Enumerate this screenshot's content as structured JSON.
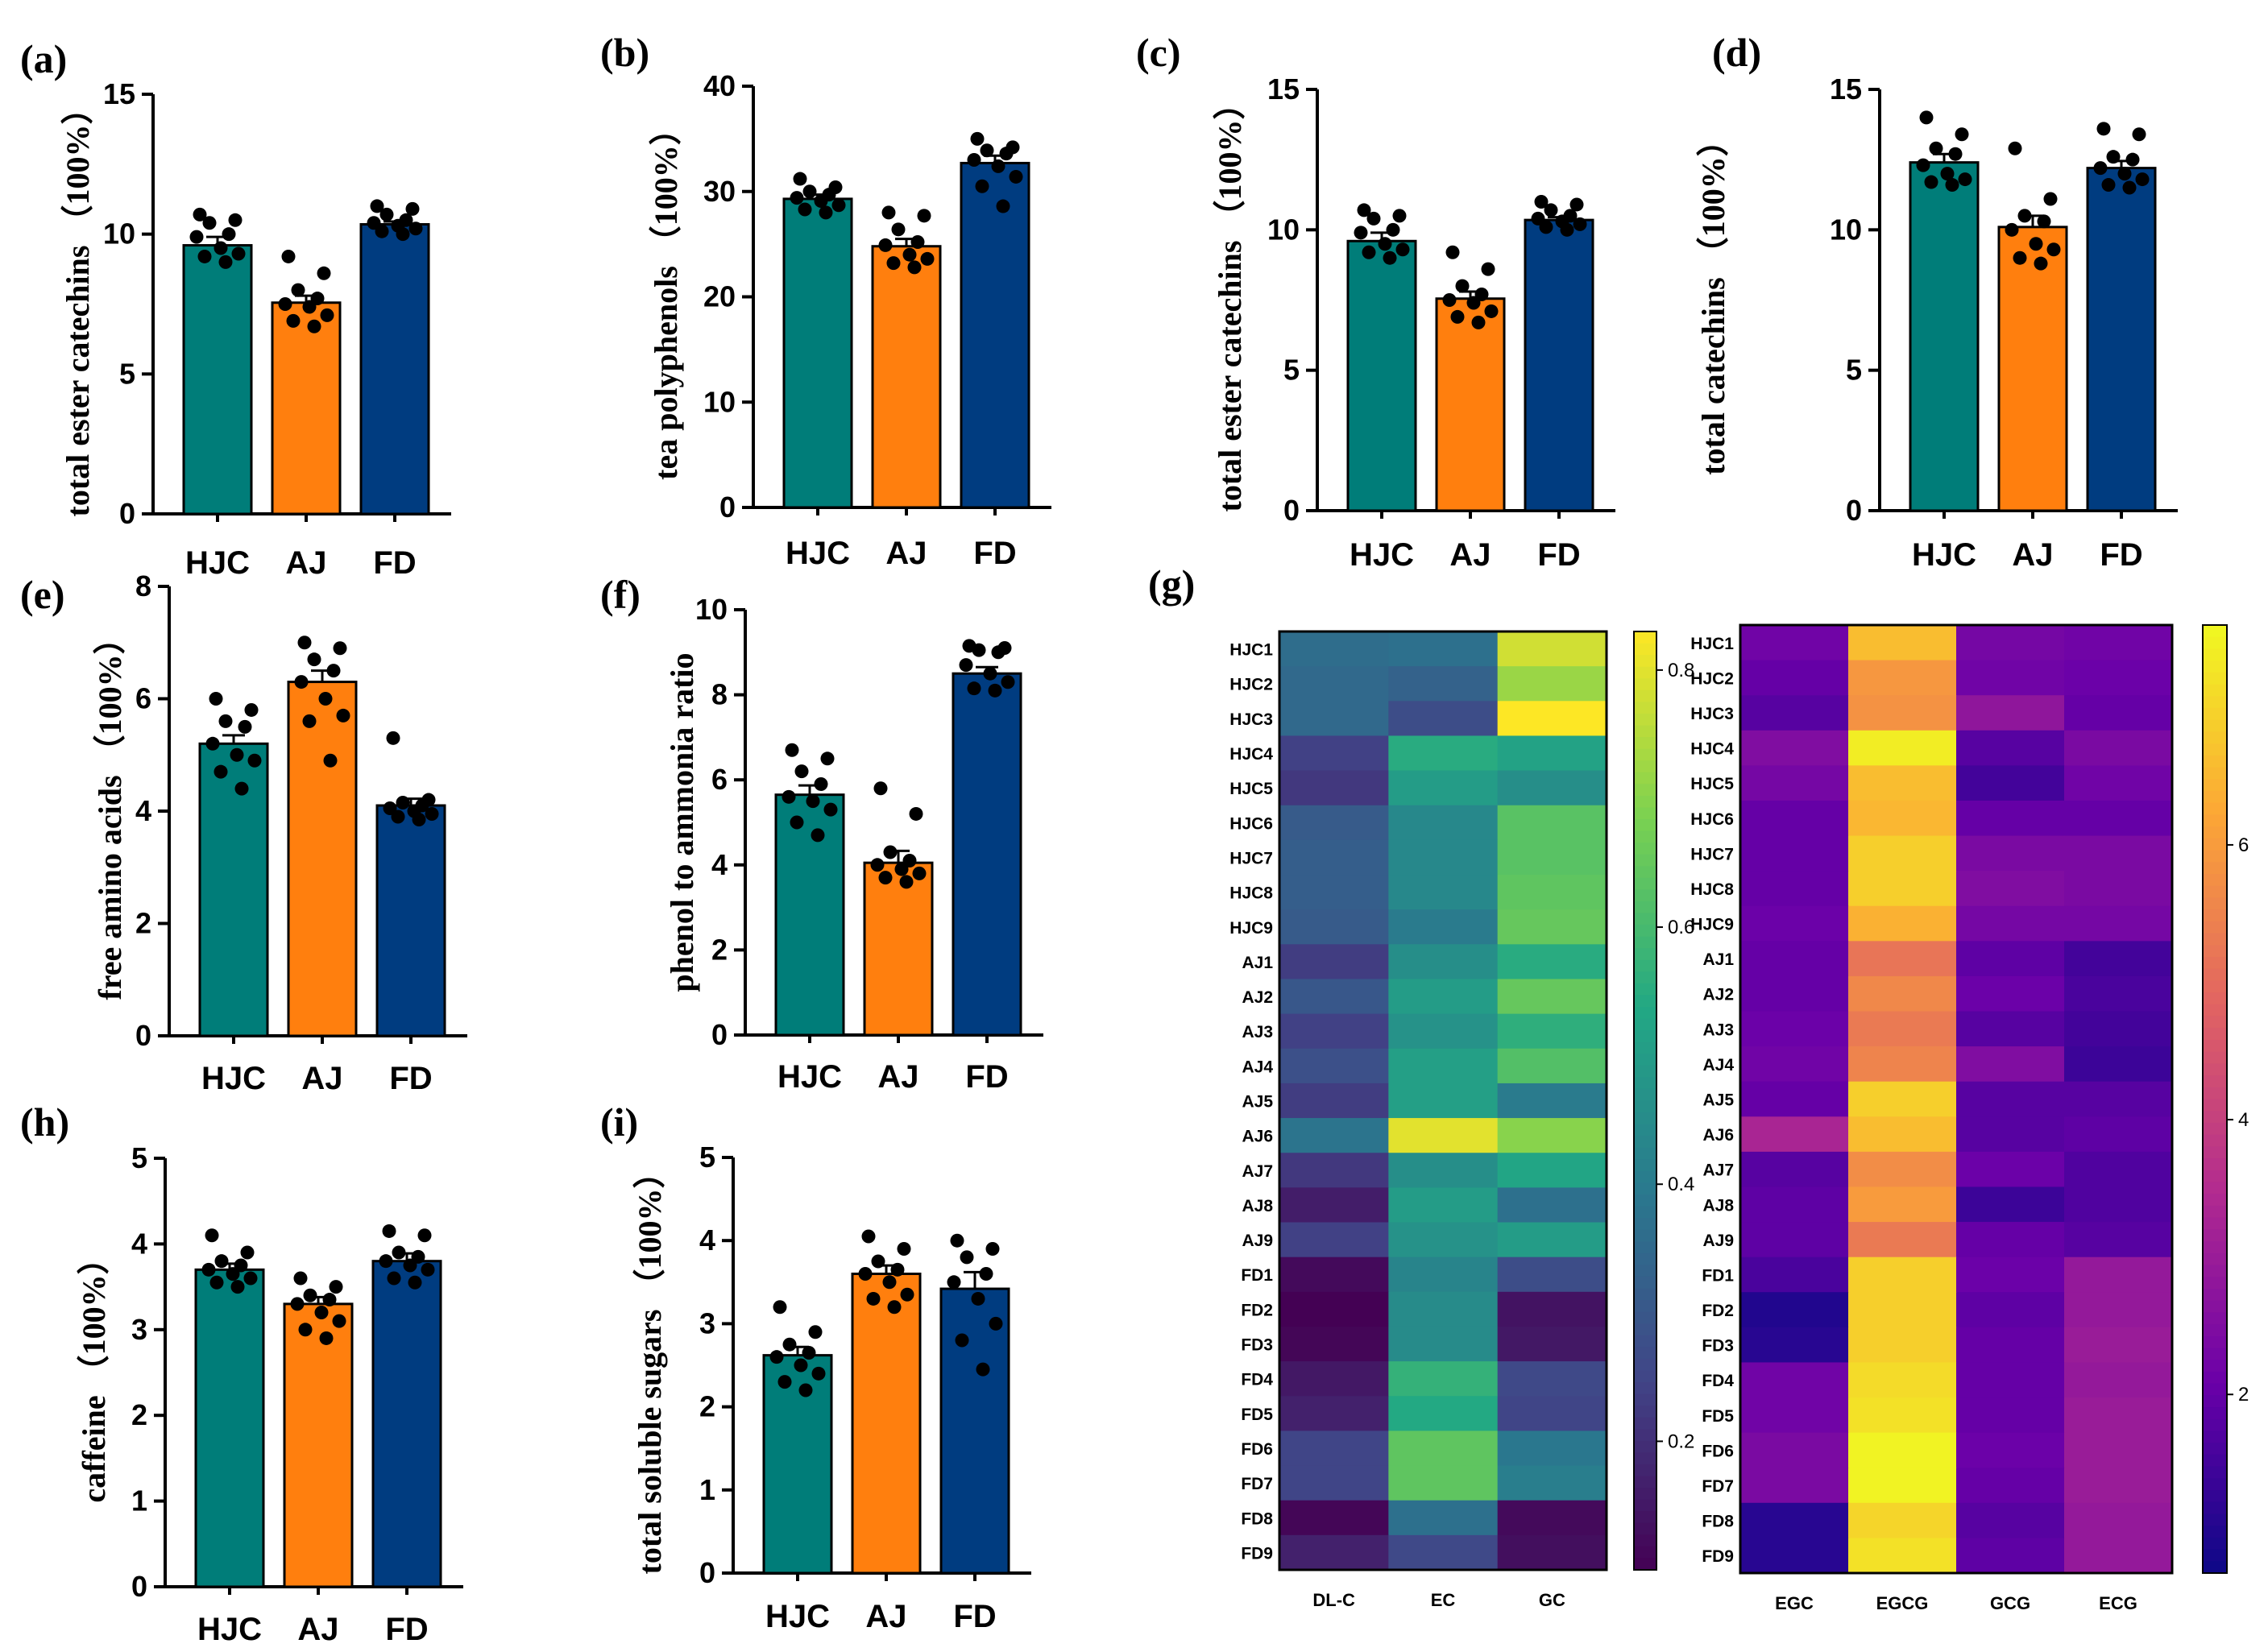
{
  "colors": {
    "HJC": "#007d79",
    "AJ": "#ff7f0e",
    "FD": "#003c80"
  },
  "chart_data": [
    {
      "id": "a",
      "type": "bar",
      "panel_label": "(a)",
      "ylabel": "total ester catechins （100%）",
      "categories": [
        "HJC",
        "AJ",
        "FD"
      ],
      "values": [
        9.6,
        7.55,
        10.35
      ],
      "sem": [
        0.3,
        0.25,
        0.1
      ],
      "points": [
        [
          10.7,
          10.5,
          10.4,
          10.0,
          9.9,
          9.5,
          9.3,
          9.2,
          9.0
        ],
        [
          9.2,
          8.6,
          8.0,
          7.7,
          7.5,
          7.4,
          7.1,
          6.9,
          6.7
        ],
        [
          11.0,
          10.9,
          10.7,
          10.5,
          10.4,
          10.3,
          10.2,
          10.1,
          10.0
        ]
      ],
      "ylim": [
        0,
        15
      ],
      "yticks": [
        0,
        5,
        10,
        15
      ]
    },
    {
      "id": "b",
      "type": "bar",
      "panel_label": "(b)",
      "ylabel": "tea polyphenols （100%）",
      "categories": [
        "HJC",
        "AJ",
        "FD"
      ],
      "values": [
        29.3,
        24.8,
        32.7
      ],
      "sem": [
        0.4,
        0.7,
        0.7
      ],
      "points": [
        [
          31.2,
          30.4,
          30.0,
          29.7,
          29.4,
          29.1,
          28.7,
          28.3,
          28.0
        ],
        [
          28.0,
          27.7,
          26.4,
          25.2,
          24.9,
          24.0,
          23.6,
          23.2,
          22.8
        ],
        [
          35.0,
          34.2,
          33.9,
          33.6,
          33.0,
          32.4,
          31.4,
          30.5,
          28.6
        ]
      ],
      "ylim": [
        0,
        40
      ],
      "yticks": [
        0,
        10,
        20,
        30,
        40
      ]
    },
    {
      "id": "c",
      "type": "bar",
      "panel_label": "(c)",
      "ylabel": "total ester catechins （100%）",
      "categories": [
        "HJC",
        "AJ",
        "FD"
      ],
      "values": [
        9.6,
        7.55,
        10.35
      ],
      "sem": [
        0.3,
        0.25,
        0.1
      ],
      "points": [
        [
          10.7,
          10.5,
          10.4,
          10.0,
          9.9,
          9.5,
          9.3,
          9.2,
          9.0
        ],
        [
          9.2,
          8.6,
          8.0,
          7.7,
          7.5,
          7.4,
          7.1,
          6.9,
          6.7
        ],
        [
          11.0,
          10.9,
          10.7,
          10.5,
          10.4,
          10.3,
          10.2,
          10.1,
          10.0
        ]
      ],
      "ylim": [
        0,
        15
      ],
      "yticks": [
        0,
        5,
        10,
        15
      ]
    },
    {
      "id": "d",
      "type": "bar",
      "panel_label": "(d)",
      "ylabel": "total catechins （100%）",
      "categories": [
        "HJC",
        "AJ",
        "FD"
      ],
      "values": [
        12.4,
        10.1,
        12.2
      ],
      "sem": [
        0.3,
        0.4,
        0.25
      ],
      "points": [
        [
          14.0,
          13.4,
          12.9,
          12.7,
          12.3,
          12.0,
          11.8,
          11.7,
          11.6
        ],
        [
          12.9,
          11.1,
          10.5,
          10.3,
          10.0,
          9.5,
          9.3,
          9.0,
          8.8
        ],
        [
          13.6,
          13.4,
          12.6,
          12.5,
          12.2,
          12.0,
          11.8,
          11.6,
          11.5
        ]
      ],
      "ylim": [
        0,
        15
      ],
      "yticks": [
        0,
        5,
        10,
        15
      ]
    },
    {
      "id": "e",
      "type": "bar",
      "panel_label": "(e)",
      "ylabel": "free amino acids （100%）",
      "categories": [
        "HJC",
        "AJ",
        "FD"
      ],
      "values": [
        5.2,
        6.3,
        4.1
      ],
      "sem": [
        0.15,
        0.2,
        0.12
      ],
      "points": [
        [
          6.0,
          5.8,
          5.6,
          5.5,
          5.2,
          5.0,
          4.9,
          4.7,
          4.4
        ],
        [
          7.0,
          6.9,
          6.7,
          6.5,
          6.3,
          6.0,
          5.7,
          5.6,
          4.9
        ],
        [
          5.3,
          4.2,
          4.15,
          4.1,
          4.05,
          4.0,
          3.95,
          3.9,
          3.85
        ]
      ],
      "ylim": [
        0,
        8
      ],
      "yticks": [
        0,
        2,
        4,
        6,
        8
      ]
    },
    {
      "id": "f",
      "type": "bar",
      "panel_label": "(f)",
      "ylabel": "phenol to ammonia ratio",
      "categories": [
        "HJC",
        "AJ",
        "FD"
      ],
      "values": [
        5.65,
        4.05,
        8.5
      ],
      "sem": [
        0.22,
        0.28,
        0.15
      ],
      "points": [
        [
          6.7,
          6.5,
          6.2,
          5.9,
          5.6,
          5.5,
          5.3,
          5.0,
          4.7
        ],
        [
          5.8,
          5.2,
          4.3,
          4.1,
          4.0,
          3.9,
          3.8,
          3.7,
          3.6
        ],
        [
          9.15,
          9.1,
          9.05,
          9.0,
          8.7,
          8.5,
          8.3,
          8.15,
          8.1
        ]
      ],
      "ylim": [
        0,
        10
      ],
      "yticks": [
        0,
        2,
        4,
        6,
        8,
        10
      ]
    },
    {
      "id": "h",
      "type": "bar",
      "panel_label": "(h)",
      "ylabel": "caffeine （100%）",
      "categories": [
        "HJC",
        "AJ",
        "FD"
      ],
      "values": [
        3.7,
        3.3,
        3.8
      ],
      "sem": [
        0.07,
        0.08,
        0.09
      ],
      "points": [
        [
          4.1,
          3.9,
          3.8,
          3.75,
          3.7,
          3.65,
          3.6,
          3.55,
          3.5
        ],
        [
          3.6,
          3.5,
          3.4,
          3.35,
          3.3,
          3.2,
          3.1,
          3.0,
          2.9
        ],
        [
          4.15,
          4.1,
          3.9,
          3.85,
          3.8,
          3.75,
          3.7,
          3.6,
          3.55
        ]
      ],
      "ylim": [
        0,
        5
      ],
      "yticks": [
        0,
        1,
        2,
        3,
        4,
        5
      ]
    },
    {
      "id": "i",
      "type": "bar",
      "panel_label": "(i)",
      "ylabel": "total soluble sugars （100%）",
      "categories": [
        "HJC",
        "AJ",
        "FD"
      ],
      "values": [
        2.62,
        3.6,
        3.42
      ],
      "sem": [
        0.1,
        0.1,
        0.2
      ],
      "points": [
        [
          3.2,
          2.9,
          2.75,
          2.65,
          2.6,
          2.5,
          2.4,
          2.3,
          2.2
        ],
        [
          4.05,
          3.9,
          3.75,
          3.65,
          3.6,
          3.5,
          3.35,
          3.3,
          3.2
        ],
        [
          4.0,
          3.9,
          3.8,
          3.6,
          3.5,
          3.3,
          3.0,
          2.8,
          2.45
        ]
      ],
      "ylim": [
        0,
        5
      ],
      "yticks": [
        0,
        1,
        2,
        3,
        4,
        5
      ]
    },
    {
      "id": "g1",
      "type": "heatmap",
      "panel_label": "(g)",
      "rows": [
        "HJC1",
        "HJC2",
        "HJC3",
        "HJC4",
        "HJC5",
        "HJC6",
        "HJC7",
        "HJC8",
        "HJC9",
        "AJ1",
        "AJ2",
        "AJ3",
        "AJ4",
        "AJ5",
        "AJ6",
        "AJ7",
        "AJ8",
        "AJ9",
        "FD1",
        "FD2",
        "FD3",
        "FD4",
        "FD5",
        "FD6",
        "FD7",
        "FD8",
        "FD9"
      ],
      "columns": [
        "DL-C",
        "EC",
        "GC"
      ],
      "colorscale": "viridis",
      "vmin": 0.1,
      "vmax": 0.83,
      "colorbar_ticks": [
        0.2,
        0.4,
        0.6,
        0.8
      ],
      "values": [
        [
          0.36,
          0.37,
          0.78
        ],
        [
          0.35,
          0.33,
          0.72
        ],
        [
          0.35,
          0.27,
          0.83
        ],
        [
          0.24,
          0.55,
          0.52
        ],
        [
          0.22,
          0.5,
          0.46
        ],
        [
          0.31,
          0.44,
          0.63
        ],
        [
          0.32,
          0.44,
          0.63
        ],
        [
          0.32,
          0.44,
          0.64
        ],
        [
          0.31,
          0.4,
          0.65
        ],
        [
          0.23,
          0.46,
          0.55
        ],
        [
          0.3,
          0.5,
          0.65
        ],
        [
          0.24,
          0.47,
          0.56
        ],
        [
          0.28,
          0.51,
          0.62
        ],
        [
          0.23,
          0.51,
          0.4
        ],
        [
          0.38,
          0.8,
          0.7
        ],
        [
          0.22,
          0.46,
          0.53
        ],
        [
          0.16,
          0.5,
          0.37
        ],
        [
          0.24,
          0.47,
          0.5
        ],
        [
          0.12,
          0.43,
          0.27
        ],
        [
          0.1,
          0.45,
          0.14
        ],
        [
          0.11,
          0.45,
          0.15
        ],
        [
          0.15,
          0.57,
          0.26
        ],
        [
          0.17,
          0.54,
          0.25
        ],
        [
          0.25,
          0.64,
          0.39
        ],
        [
          0.25,
          0.64,
          0.41
        ],
        [
          0.11,
          0.37,
          0.12
        ],
        [
          0.17,
          0.26,
          0.13
        ]
      ]
    },
    {
      "id": "g2",
      "type": "heatmap",
      "rows": [
        "HJC1",
        "HJC2",
        "HJC3",
        "HJC4",
        "HJC5",
        "HJC6",
        "HJC7",
        "HJC8",
        "HJC9",
        "AJ1",
        "AJ2",
        "AJ3",
        "AJ4",
        "AJ5",
        "AJ6",
        "AJ7",
        "AJ8",
        "AJ9",
        "FD1",
        "FD2",
        "FD3",
        "FD4",
        "FD5",
        "FD6",
        "FD7",
        "FD8",
        "FD9"
      ],
      "columns": [
        "EGC",
        "EGCG",
        "GCG",
        "ECG"
      ],
      "colorscale": "plasma",
      "vmin": 0.7,
      "vmax": 7.6,
      "colorbar_ticks": [
        2,
        4,
        6
      ],
      "values": [
        [
          2.2,
          6.6,
          2.3,
          2.2
        ],
        [
          2.0,
          5.9,
          2.2,
          2.1
        ],
        [
          1.8,
          5.8,
          2.8,
          2.0
        ],
        [
          2.5,
          7.4,
          1.8,
          2.4
        ],
        [
          2.3,
          6.6,
          1.5,
          2.2
        ],
        [
          2.0,
          6.5,
          2.0,
          2.0
        ],
        [
          2.0,
          6.9,
          2.4,
          2.4
        ],
        [
          2.0,
          6.9,
          2.5,
          2.4
        ],
        [
          2.1,
          6.4,
          2.3,
          2.3
        ],
        [
          2.0,
          5.2,
          1.9,
          1.5
        ],
        [
          2.0,
          5.6,
          2.1,
          1.6
        ],
        [
          2.1,
          5.3,
          1.8,
          1.5
        ],
        [
          2.2,
          5.5,
          2.5,
          1.4
        ],
        [
          2.0,
          6.9,
          1.8,
          1.8
        ],
        [
          3.3,
          6.6,
          1.8,
          1.9
        ],
        [
          1.8,
          5.7,
          2.1,
          1.7
        ],
        [
          1.9,
          6.0,
          1.4,
          1.7
        ],
        [
          1.9,
          5.3,
          2.0,
          1.8
        ],
        [
          1.6,
          6.9,
          2.1,
          2.9
        ],
        [
          1.0,
          6.9,
          1.9,
          2.9
        ],
        [
          1.1,
          6.9,
          2.0,
          3.0
        ],
        [
          2.2,
          7.1,
          2.0,
          2.9
        ],
        [
          2.2,
          7.2,
          2.0,
          3.0
        ],
        [
          2.4,
          7.5,
          2.1,
          3.0
        ],
        [
          2.4,
          7.5,
          2.0,
          3.0
        ],
        [
          1.1,
          7.0,
          1.8,
          2.9
        ],
        [
          1.1,
          7.2,
          1.9,
          2.9
        ]
      ]
    }
  ]
}
